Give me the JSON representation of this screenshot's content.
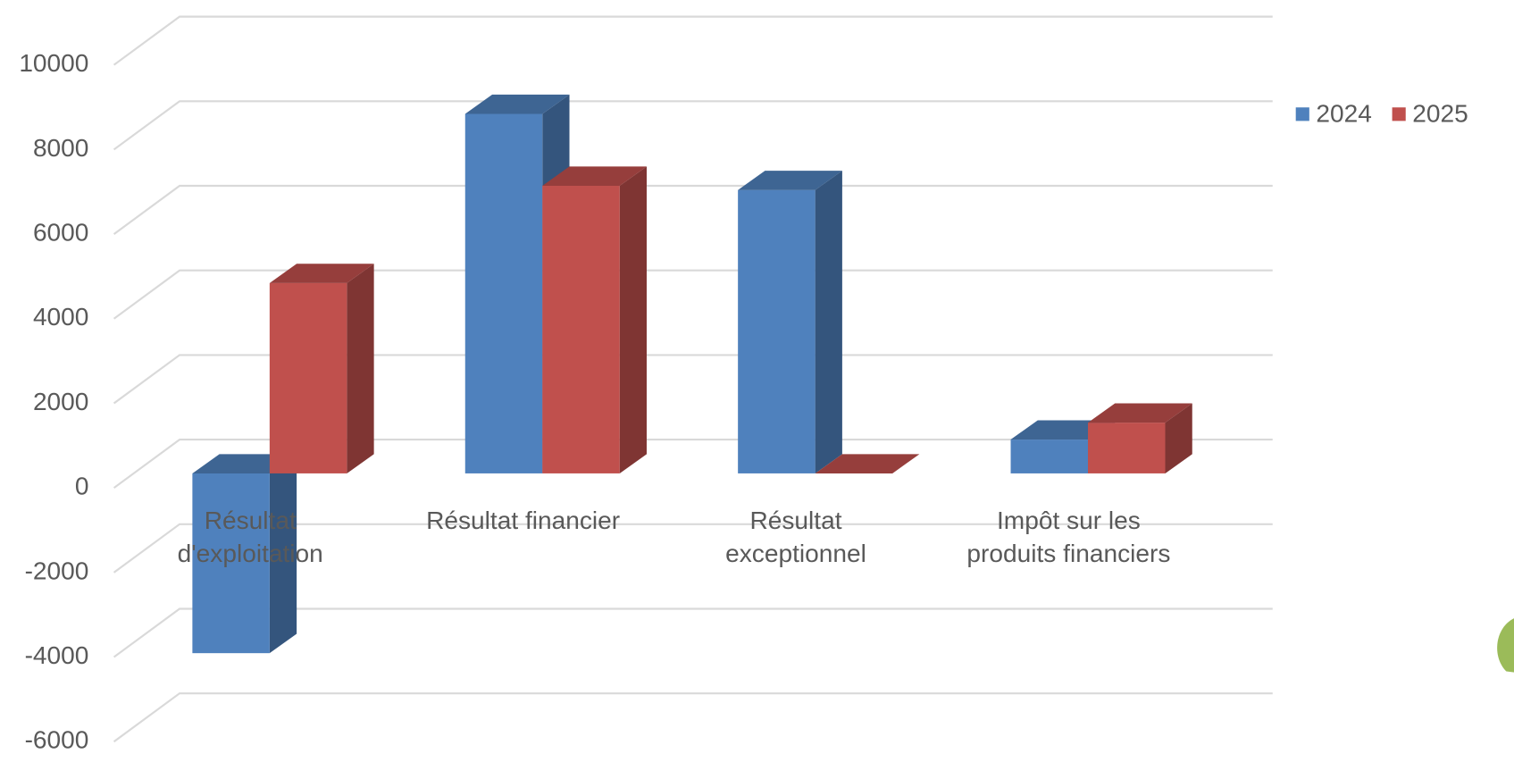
{
  "chart_data": {
    "type": "bar3d",
    "categories": [
      "Résultat d'exploitation",
      "Résultat financier",
      "Résultat exceptionnel",
      "Impôt sur les produits financiers"
    ],
    "series": [
      {
        "name": "2024",
        "color": "#4f81bd",
        "values": [
          -4250,
          8500,
          6700,
          800
        ]
      },
      {
        "name": "2025",
        "color": "#c0504d",
        "values": [
          4500,
          6800,
          0,
          1200
        ]
      }
    ],
    "ylim": [
      -6000,
      10000
    ],
    "yticks": [
      -6000,
      -4000,
      -2000,
      0,
      2000,
      4000,
      6000,
      8000,
      10000
    ],
    "grid": true,
    "legend": "top-right"
  }
}
